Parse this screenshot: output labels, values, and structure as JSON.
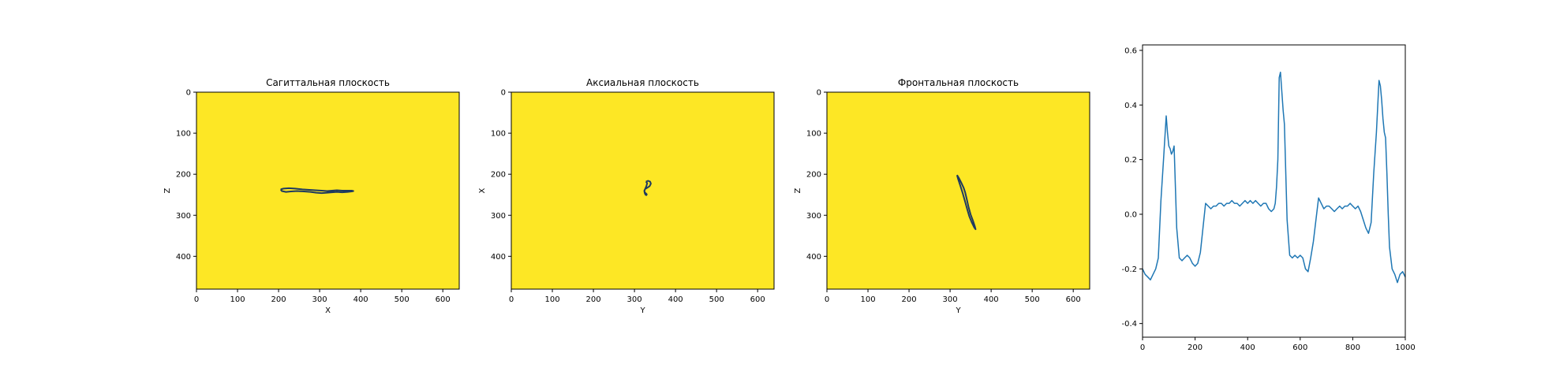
{
  "colors": {
    "plane_fill": "#fde725",
    "contour": "#1f3a5f",
    "line": "#1f77b4",
    "axes": "#000000",
    "background": "#ffffff"
  },
  "chart_data": [
    {
      "type": "line",
      "title": "Сагиттальная плоскость",
      "xlabel": "X",
      "ylabel": "Z",
      "xlim": [
        0,
        640
      ],
      "ylim": [
        480,
        0
      ],
      "xticks": [
        0,
        100,
        200,
        300,
        400,
        500,
        600
      ],
      "yticks": [
        0,
        100,
        200,
        300,
        400
      ],
      "grid": false,
      "series": [
        {
          "x": [
            205,
            212,
            225,
            240,
            258,
            275,
            290,
            305,
            318,
            330,
            342,
            355,
            368,
            378,
            382,
            378,
            368,
            355,
            342,
            330,
            318,
            305,
            292,
            278,
            262,
            245,
            230,
            218,
            208,
            205
          ],
          "y": [
            237,
            235,
            234,
            235,
            237,
            238,
            239,
            240,
            241,
            240,
            239,
            240,
            240,
            240,
            241,
            242,
            243,
            244,
            243,
            244,
            245,
            246,
            245,
            243,
            242,
            241,
            242,
            243,
            241,
            237
          ]
        },
        {
          "x": [
            318,
            324,
            330,
            336
          ],
          "y": [
            243,
            242,
            242,
            243
          ]
        }
      ]
    },
    {
      "type": "line",
      "title": "Аксиальная плоскость",
      "xlabel": "Y",
      "ylabel": "X",
      "xlim": [
        0,
        640
      ],
      "ylim": [
        480,
        0
      ],
      "xticks": [
        0,
        100,
        200,
        300,
        400,
        500,
        600
      ],
      "yticks": [
        0,
        100,
        200,
        300,
        400
      ],
      "grid": false,
      "series": [
        {
          "x": [
            328,
            333,
            338,
            340,
            337,
            331,
            326,
            324,
            325,
            328,
            330,
            329,
            327,
            325,
            324,
            326,
            329,
            331,
            328
          ],
          "y": [
            218,
            216,
            218,
            223,
            229,
            233,
            236,
            240,
            244,
            247,
            249,
            251,
            250,
            246,
            241,
            236,
            229,
            222,
            218
          ]
        }
      ]
    },
    {
      "type": "line",
      "title": "Фронтальная плоскость",
      "xlabel": "Y",
      "ylabel": "Z",
      "xlim": [
        0,
        640
      ],
      "ylim": [
        480,
        0
      ],
      "xticks": [
        0,
        100,
        200,
        300,
        400,
        500,
        600
      ],
      "yticks": [
        0,
        100,
        200,
        300,
        400
      ],
      "grid": false,
      "series": [
        {
          "x": [
            317,
            322,
            327,
            333,
            337,
            341,
            345,
            350,
            356,
            360,
            362,
            359,
            353,
            347,
            342,
            337,
            331,
            325,
            319,
            317
          ],
          "y": [
            202,
            210,
            220,
            233,
            245,
            262,
            280,
            298,
            314,
            326,
            334,
            330,
            318,
            303,
            286,
            268,
            247,
            228,
            210,
            202
          ]
        }
      ]
    },
    {
      "type": "line",
      "title": "",
      "xlabel": "",
      "ylabel": "",
      "xlim": [
        0,
        1000
      ],
      "ylim": [
        -0.45,
        0.62
      ],
      "xticks": [
        0,
        200,
        400,
        600,
        800,
        1000
      ],
      "yticks": [
        -0.4,
        -0.2,
        0.0,
        0.2,
        0.4,
        0.6
      ],
      "grid": false,
      "series": [
        {
          "x": [
            0,
            10,
            20,
            30,
            40,
            50,
            60,
            70,
            80,
            90,
            95,
            100,
            105,
            110,
            115,
            120,
            130,
            140,
            150,
            160,
            170,
            180,
            190,
            200,
            210,
            220,
            230,
            240,
            250,
            260,
            270,
            280,
            290,
            300,
            310,
            320,
            330,
            340,
            350,
            360,
            370,
            380,
            390,
            400,
            410,
            420,
            430,
            440,
            450,
            460,
            470,
            480,
            490,
            500,
            505,
            510,
            515,
            520,
            525,
            530,
            535,
            540,
            550,
            560,
            570,
            580,
            590,
            600,
            610,
            620,
            630,
            640,
            650,
            660,
            670,
            680,
            690,
            700,
            710,
            720,
            730,
            740,
            750,
            760,
            770,
            780,
            790,
            800,
            810,
            820,
            830,
            840,
            850,
            860,
            870,
            880,
            890,
            900,
            905,
            910,
            915,
            920,
            925,
            930,
            935,
            940,
            950,
            960,
            970,
            980,
            990,
            1000
          ],
          "y": [
            -0.2,
            -0.22,
            -0.23,
            -0.24,
            -0.22,
            -0.2,
            -0.16,
            0.05,
            0.2,
            0.36,
            0.3,
            0.25,
            0.24,
            0.22,
            0.23,
            0.25,
            -0.05,
            -0.16,
            -0.17,
            -0.16,
            -0.15,
            -0.16,
            -0.18,
            -0.19,
            -0.18,
            -0.14,
            -0.05,
            0.04,
            0.03,
            0.02,
            0.03,
            0.03,
            0.04,
            0.04,
            0.03,
            0.04,
            0.04,
            0.05,
            0.04,
            0.04,
            0.03,
            0.04,
            0.05,
            0.04,
            0.05,
            0.04,
            0.05,
            0.04,
            0.03,
            0.04,
            0.04,
            0.02,
            0.01,
            0.02,
            0.04,
            0.1,
            0.2,
            0.5,
            0.52,
            0.45,
            0.38,
            0.33,
            -0.02,
            -0.15,
            -0.16,
            -0.15,
            -0.16,
            -0.15,
            -0.16,
            -0.2,
            -0.21,
            -0.16,
            -0.1,
            -0.02,
            0.06,
            0.04,
            0.02,
            0.03,
            0.03,
            0.02,
            0.01,
            0.02,
            0.03,
            0.02,
            0.03,
            0.03,
            0.04,
            0.03,
            0.02,
            0.03,
            0.01,
            -0.02,
            -0.05,
            -0.07,
            -0.03,
            0.15,
            0.3,
            0.49,
            0.47,
            0.42,
            0.35,
            0.3,
            0.28,
            0.15,
            0.0,
            -0.12,
            -0.2,
            -0.22,
            -0.25,
            -0.22,
            -0.21,
            -0.23
          ]
        }
      ]
    }
  ]
}
